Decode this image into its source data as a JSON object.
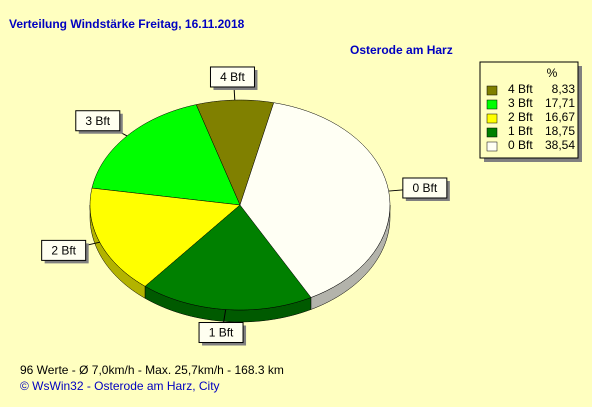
{
  "chart_data": {
    "type": "pie",
    "title": "Verteilung Windstärke  Freitag, 16.11.2018",
    "subtitle": "Osterode am Harz",
    "legend_header": "%",
    "categories": [
      "4 Bft",
      "3 Bft",
      "2 Bft",
      "1 Bft",
      "0 Bft"
    ],
    "values": [
      8.33,
      17.71,
      16.67,
      18.75,
      38.54
    ],
    "value_labels": [
      "8,33",
      "17,71",
      "16,67",
      "18,75",
      "38,54"
    ],
    "colors": [
      "#808000",
      "#00ff00",
      "#ffff00",
      "#008000",
      "#fffff4"
    ],
    "legend": "top-right",
    "footer": "96 Werte  -  Ø 7,0km/h  -  Max. 25,7km/h  -  168.3 km",
    "copyright": "© WsWin32  -  Osterode am Harz, City"
  }
}
